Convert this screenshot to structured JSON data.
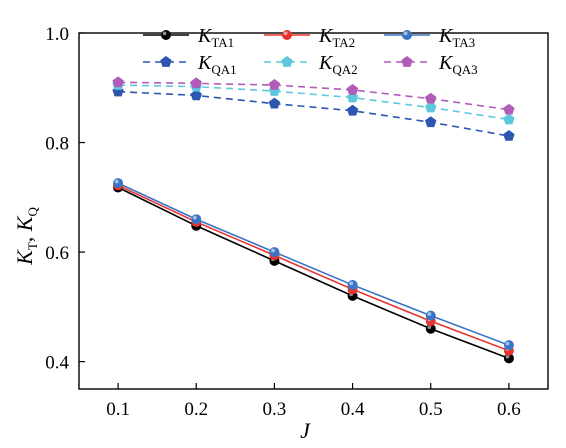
{
  "chart_data": {
    "type": "line",
    "x": [
      0.1,
      0.2,
      0.3,
      0.4,
      0.5,
      0.6
    ],
    "xlim": [
      0.05,
      0.65
    ],
    "ylim": [
      0.35,
      1.0
    ],
    "xticks": [
      "0.1",
      "0.2",
      "0.3",
      "0.4",
      "0.5",
      "0.6"
    ],
    "yticks": [
      "0.4",
      "0.6",
      "0.8",
      "1.0"
    ],
    "xlabel": "J",
    "ylabel": {
      "main1": "K",
      "sub1": "T",
      "sep": ", ",
      "main2": "K",
      "sub2": "Q"
    },
    "grid": false,
    "legend_position": "top",
    "series": [
      {
        "main": "K",
        "sub": "TA1",
        "color": "#000000",
        "dash": "solid",
        "marker": "circle",
        "values": [
          0.718,
          0.648,
          0.584,
          0.52,
          0.46,
          0.406
        ]
      },
      {
        "main": "K",
        "sub": "TA2",
        "color": "#e8322e",
        "dash": "solid",
        "marker": "circle",
        "values": [
          0.722,
          0.655,
          0.594,
          0.532,
          0.474,
          0.42
        ]
      },
      {
        "main": "K",
        "sub": "TA3",
        "color": "#3a74c4",
        "dash": "solid",
        "marker": "circle",
        "values": [
          0.726,
          0.66,
          0.6,
          0.54,
          0.484,
          0.43
        ]
      },
      {
        "main": "K",
        "sub": "QA1",
        "color": "#2c56b0",
        "dash": "dashed",
        "marker": "pentagon",
        "values": [
          0.893,
          0.886,
          0.871,
          0.858,
          0.837,
          0.812
        ]
      },
      {
        "main": "K",
        "sub": "QA2",
        "color": "#5cc8dc",
        "dash": "dashed",
        "marker": "pentagon",
        "values": [
          0.905,
          0.902,
          0.894,
          0.882,
          0.864,
          0.842
        ]
      },
      {
        "main": "K",
        "sub": "QA3",
        "color": "#b05cb8",
        "dash": "dashed",
        "marker": "pentagon",
        "values": [
          0.91,
          0.908,
          0.905,
          0.896,
          0.88,
          0.86
        ]
      }
    ]
  }
}
